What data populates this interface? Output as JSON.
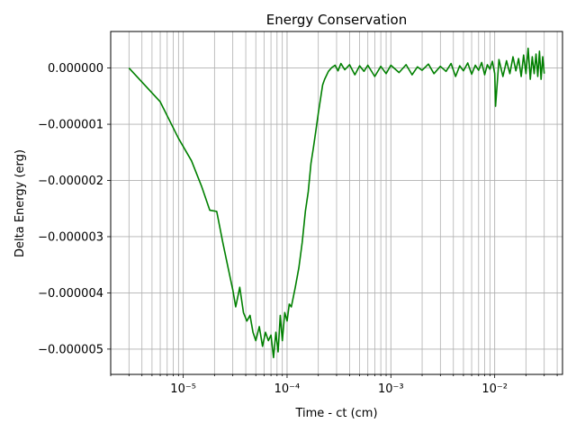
{
  "chart_data": {
    "type": "line",
    "title": "Energy Conservation",
    "xlabel": "Time - ct (cm)",
    "ylabel": "Delta Energy (erg)",
    "xscale": "log",
    "xlim": [
      2e-06,
      0.045
    ],
    "ylim": [
      -5.45e-06,
      6.5e-07
    ],
    "grid": true,
    "line_color": "#008000",
    "x_ticks": [
      {
        "value": 1e-05,
        "label": "10⁻⁵"
      },
      {
        "value": 0.0001,
        "label": "10⁻⁴"
      },
      {
        "value": 0.001,
        "label": "10⁻³"
      },
      {
        "value": 0.01,
        "label": "10⁻²"
      }
    ],
    "y_ticks": [
      {
        "value": 0,
        "label": "0.000000"
      },
      {
        "value": -1e-06,
        "label": "−0.000001"
      },
      {
        "value": -2e-06,
        "label": "−0.000002"
      },
      {
        "value": -3e-06,
        "label": "−0.000003"
      },
      {
        "value": -4e-06,
        "label": "−0.000004"
      },
      {
        "value": -5e-06,
        "label": "−0.000005"
      }
    ],
    "series": [
      {
        "x": [
          3e-06,
          6e-06,
          9e-06,
          1.2e-05,
          1.5e-05,
          1.8e-05,
          2.1e-05,
          2.4e-05,
          2.7e-05,
          3e-05,
          3.2e-05,
          3.5e-05,
          3.8e-05,
          4.1e-05,
          4.4e-05,
          4.7e-05,
          5e-05,
          5.4e-05,
          5.8e-05,
          6.2e-05,
          6.6e-05,
          7e-05,
          7.4e-05,
          7.8e-05,
          8.2e-05,
          8.6e-05,
          9e-05,
          9.5e-05,
          0.0001,
          0.000105,
          0.00011,
          0.00012,
          0.00013,
          0.00014,
          0.00015,
          0.00016,
          0.00017,
          0.00018,
          0.00019,
          0.0002,
          0.00021,
          0.00022,
          0.00023,
          0.00025,
          0.00027,
          0.00029,
          0.00031,
          0.00033,
          0.00036,
          0.0004,
          0.00045,
          0.0005,
          0.00055,
          0.0006,
          0.0007,
          0.0008,
          0.0009,
          0.001,
          0.0012,
          0.0014,
          0.0016,
          0.0018,
          0.002,
          0.0023,
          0.0026,
          0.003,
          0.0034,
          0.0038,
          0.0042,
          0.0046,
          0.005,
          0.0055,
          0.006,
          0.0065,
          0.007,
          0.0075,
          0.008,
          0.0085,
          0.009,
          0.0095,
          0.01,
          0.0102,
          0.011,
          0.012,
          0.013,
          0.014,
          0.015,
          0.016,
          0.017,
          0.018,
          0.019,
          0.02,
          0.021,
          0.022,
          0.023,
          0.024,
          0.025,
          0.026,
          0.027,
          0.028,
          0.029,
          0.03
        ],
        "y": [
          0,
          -6e-07,
          -1.25e-06,
          -1.65e-06,
          -2.1e-06,
          -2.53e-06,
          -2.55e-06,
          -3.1e-06,
          -3.55e-06,
          -3.95e-06,
          -4.25e-06,
          -3.9e-06,
          -4.35e-06,
          -4.5e-06,
          -4.4e-06,
          -4.7e-06,
          -4.85e-06,
          -4.6e-06,
          -4.95e-06,
          -4.7e-06,
          -4.85e-06,
          -4.75e-06,
          -5.15e-06,
          -4.7e-06,
          -5.05e-06,
          -4.4e-06,
          -4.85e-06,
          -4.35e-06,
          -4.5e-06,
          -4.2e-06,
          -4.25e-06,
          -3.9e-06,
          -3.55e-06,
          -3.1e-06,
          -2.55e-06,
          -2.2e-06,
          -1.7e-06,
          -1.4e-06,
          -1.1e-06,
          -8e-07,
          -5.5e-07,
          -3e-07,
          -2e-07,
          -6e-08,
          1e-08,
          5e-08,
          -5e-08,
          8e-08,
          -3e-08,
          6e-08,
          -1.2e-07,
          4e-08,
          -6e-08,
          5e-08,
          -1.5e-07,
          3e-08,
          -1e-07,
          5e-08,
          -8e-08,
          6e-08,
          -1.2e-07,
          2e-08,
          -4e-08,
          7e-08,
          -1e-07,
          3e-08,
          -6e-08,
          8e-08,
          -1.5e-07,
          4e-08,
          -5e-08,
          9e-08,
          -1.1e-07,
          5e-08,
          -4e-08,
          1e-07,
          -1.2e-07,
          6e-08,
          -2e-08,
          1.2e-07,
          -1e-07,
          -6.8e-07,
          1.5e-07,
          -1.5e-07,
          1.3e-07,
          -1e-07,
          2e-07,
          -5e-08,
          1.7e-07,
          -1.5e-07,
          2.3e-07,
          -1e-07,
          3.5e-07,
          -2e-07,
          2e-07,
          -1e-07,
          2.5e-07,
          -1.5e-07,
          3e-07,
          -2e-07,
          2e-07,
          -1e-07
        ]
      }
    ]
  }
}
